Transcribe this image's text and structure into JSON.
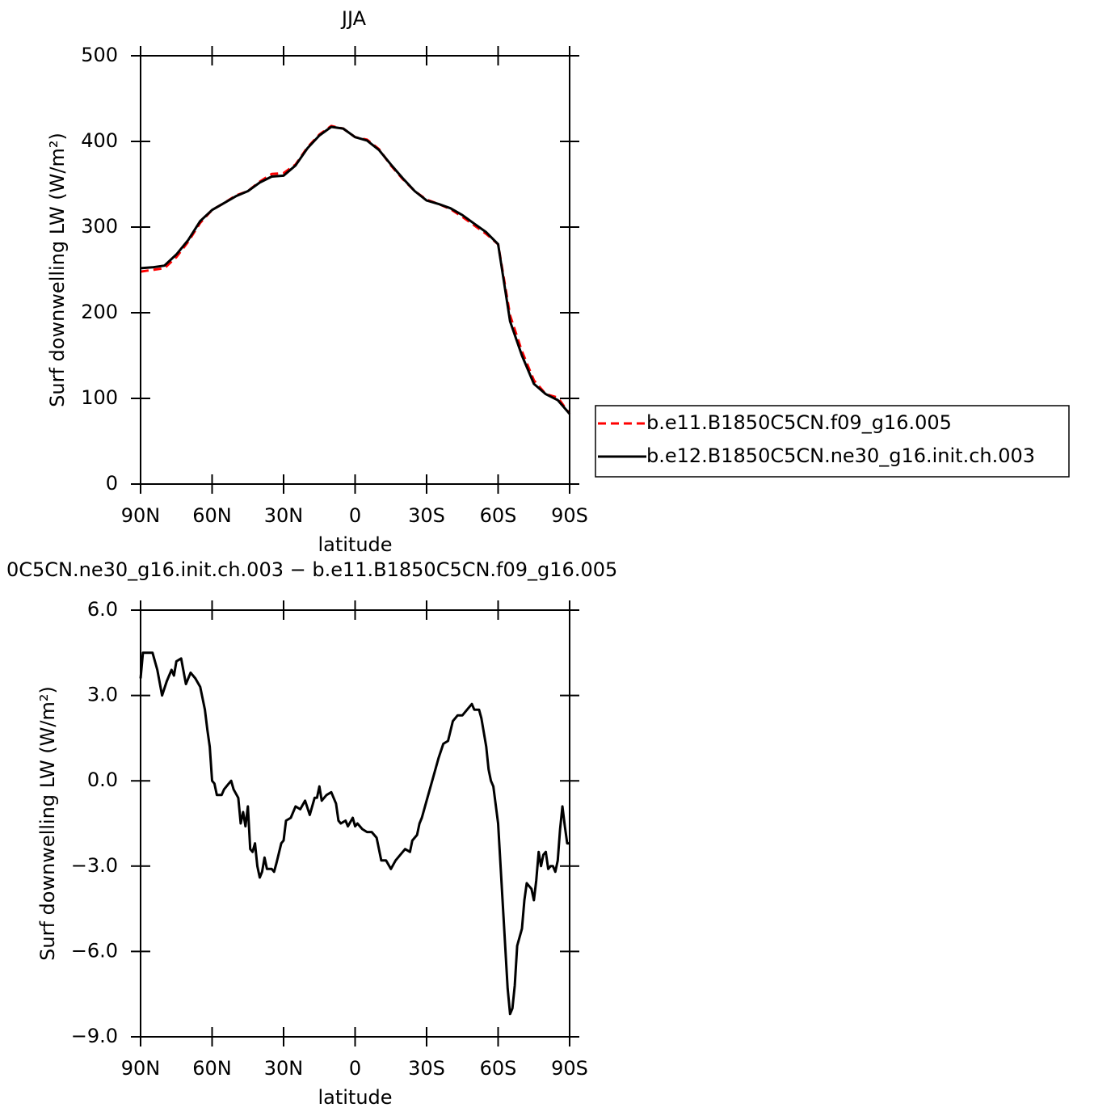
{
  "chart_data": [
    {
      "type": "line",
      "title": "JJA",
      "xlabel": "latitude",
      "ylabel": "Surf downwelling LW (W/m²)",
      "x": [
        90,
        85,
        80,
        75,
        70,
        65,
        60,
        55,
        50,
        45,
        40,
        35,
        30,
        25,
        20,
        15,
        10,
        5,
        0,
        -5,
        -10,
        -15,
        -20,
        -25,
        -30,
        -35,
        -40,
        -45,
        -50,
        -55,
        -60,
        -65,
        -70,
        -75,
        -80,
        -85,
        -90
      ],
      "series": [
        {
          "name": "b.e11.B1850C5CN.f09_g16.005",
          "color": "#ff0000",
          "dashed": true,
          "values": [
            248,
            250,
            252,
            265,
            283,
            305,
            320,
            328,
            337,
            342,
            353,
            362,
            363,
            373,
            393,
            408,
            418,
            415,
            405,
            402,
            391,
            372,
            356,
            342,
            332,
            327,
            321,
            312,
            302,
            292,
            280,
            197,
            155,
            121,
            105,
            101,
            82
          ]
        },
        {
          "name": "b.e12.B1850C5CN.ne30_g16.init.ch.003",
          "color": "#000000",
          "dashed": false,
          "values": [
            252,
            253,
            255,
            268,
            285,
            307,
            320,
            328,
            336,
            342,
            352,
            359,
            360,
            372,
            392,
            407,
            417,
            415,
            405,
            401,
            390,
            373,
            357,
            342,
            331,
            327,
            322,
            314,
            304,
            294,
            280,
            190,
            150,
            117,
            105,
            98,
            82
          ]
        }
      ],
      "xlim": [
        90,
        -90
      ],
      "ylim": [
        0,
        500
      ],
      "xticks": [
        {
          "value": 90,
          "label": "90N"
        },
        {
          "value": 60,
          "label": "60N"
        },
        {
          "value": 30,
          "label": "30N"
        },
        0,
        {
          "value": -30,
          "label": "30S"
        },
        {
          "value": -60,
          "label": "60S"
        },
        {
          "value": -90,
          "label": "90S"
        }
      ],
      "yticks": [
        0,
        100,
        200,
        300,
        400,
        500
      ],
      "legend": "right"
    },
    {
      "type": "line",
      "title": "0C5CN.ne30_g16.init.ch.003 − b.e11.B1850C5CN.f09_g16.005",
      "xlabel": "latitude",
      "ylabel": "Surf downwelling LW (W/m²)",
      "x": [
        90,
        89,
        87,
        85,
        83,
        81,
        79,
        77,
        76,
        75,
        73,
        71,
        69,
        67,
        65,
        63,
        62,
        61,
        60,
        59,
        58,
        56,
        55,
        53,
        52,
        51,
        49,
        48,
        47,
        46,
        45,
        44,
        43,
        42,
        41,
        40,
        39,
        38,
        37,
        35,
        34,
        33,
        31,
        30,
        29,
        27,
        25,
        23,
        21,
        19,
        17,
        16,
        15,
        14,
        12,
        10,
        8,
        7,
        6,
        4,
        3,
        1,
        0,
        -1,
        -3,
        -5,
        -7,
        -9,
        -11,
        -13,
        -15,
        -17,
        -19,
        -21,
        -23,
        -24,
        -26,
        -27,
        -28,
        -30,
        -33,
        -35,
        -37,
        -39,
        -41,
        -43,
        -45,
        -47,
        -49,
        -50,
        -52,
        -53,
        -55,
        -56,
        -57,
        -58,
        -60,
        -62,
        -64,
        -65,
        -66,
        -67,
        -68,
        -70,
        -71,
        -72,
        -74,
        -75,
        -76,
        -77,
        -78,
        -79,
        -80,
        -81,
        -82,
        -83,
        -84,
        -85,
        -86,
        -87,
        -88,
        -89,
        -90
      ],
      "series": [
        {
          "color": "#000000",
          "dashed": false,
          "values": [
            3.6,
            4.5,
            4.5,
            4.5,
            3.9,
            3.0,
            3.5,
            3.9,
            3.7,
            4.2,
            4.3,
            3.4,
            3.8,
            3.6,
            3.3,
            2.5,
            1.8,
            1.2,
            0.0,
            -0.1,
            -0.5,
            -0.5,
            -0.3,
            -0.1,
            0.0,
            -0.3,
            -0.6,
            -1.5,
            -1.1,
            -1.6,
            -0.9,
            -2.4,
            -2.5,
            -2.2,
            -3.0,
            -3.4,
            -3.2,
            -2.7,
            -3.1,
            -3.1,
            -3.2,
            -2.9,
            -2.2,
            -2.1,
            -1.4,
            -1.3,
            -0.9,
            -1.0,
            -0.7,
            -1.2,
            -0.6,
            -0.6,
            -0.2,
            -0.7,
            -0.5,
            -0.4,
            -0.8,
            -1.4,
            -1.5,
            -1.4,
            -1.6,
            -1.3,
            -1.6,
            -1.5,
            -1.7,
            -1.8,
            -1.8,
            -2.0,
            -2.8,
            -2.8,
            -3.1,
            -2.8,
            -2.6,
            -2.4,
            -2.5,
            -2.1,
            -1.9,
            -1.5,
            -1.3,
            -0.7,
            0.2,
            0.8,
            1.3,
            1.4,
            2.1,
            2.3,
            2.3,
            2.5,
            2.7,
            2.5,
            2.5,
            2.2,
            1.2,
            0.4,
            0.0,
            -0.2,
            -1.5,
            -4.4,
            -7.3,
            -8.2,
            -8.0,
            -7.2,
            -5.8,
            -5.2,
            -4.2,
            -3.6,
            -3.8,
            -4.2,
            -3.5,
            -2.5,
            -3.0,
            -2.6,
            -2.5,
            -3.1,
            -3.0,
            -3.0,
            -3.2,
            -2.8,
            -1.7,
            -0.9,
            -1.6,
            -2.2,
            -2.2
          ]
        }
      ],
      "xlim": [
        90,
        -90
      ],
      "ylim": [
        -9,
        6
      ],
      "xticks": [
        {
          "value": 90,
          "label": "90N"
        },
        {
          "value": 60,
          "label": "60N"
        },
        {
          "value": 30,
          "label": "30N"
        },
        0,
        {
          "value": -30,
          "label": "30S"
        },
        {
          "value": -60,
          "label": "60S"
        },
        {
          "value": -90,
          "label": "90S"
        }
      ],
      "yticks": [
        {
          "value": -9,
          "label": "−9.0"
        },
        {
          "value": -6,
          "label": "−6.0"
        },
        {
          "value": -3,
          "label": "−3.0"
        },
        {
          "value": 0,
          "label": "0.0"
        },
        {
          "value": 3,
          "label": "3.0"
        },
        {
          "value": 6,
          "label": "6.0"
        }
      ]
    }
  ]
}
